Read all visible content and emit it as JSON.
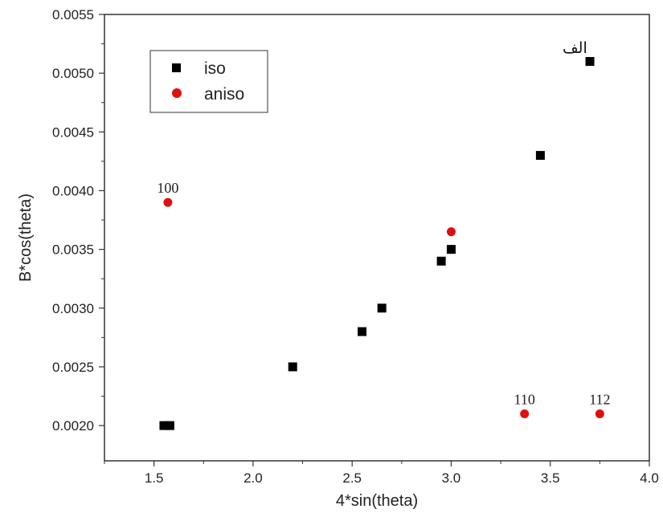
{
  "chart_data": {
    "type": "scatter",
    "xlabel": "4*sin(theta)",
    "ylabel": "B*cos(theta)",
    "xlim": [
      1.25,
      4.0
    ],
    "ylim": [
      0.0017,
      0.0055
    ],
    "x_ticks": [
      "1.5",
      "2.0",
      "2.5",
      "3.0",
      "3.5",
      "4.0"
    ],
    "y_ticks": [
      "0.0020",
      "0.0025",
      "0.0030",
      "0.0035",
      "0.0040",
      "0.0045",
      "0.0050",
      "0.0055"
    ],
    "x_tick_values": [
      1.5,
      2.0,
      2.5,
      3.0,
      3.5,
      4.0
    ],
    "y_tick_values": [
      0.002,
      0.0025,
      0.003,
      0.0035,
      0.004,
      0.0045,
      0.005,
      0.0055
    ],
    "grid": false,
    "legend_position": "top-left",
    "series": [
      {
        "name": "iso",
        "marker": "square",
        "color": "#000000",
        "points": [
          {
            "x": 1.55,
            "y": 0.002
          },
          {
            "x": 1.58,
            "y": 0.002
          },
          {
            "x": 2.2,
            "y": 0.0025
          },
          {
            "x": 2.55,
            "y": 0.0028
          },
          {
            "x": 2.65,
            "y": 0.003
          },
          {
            "x": 2.95,
            "y": 0.0034
          },
          {
            "x": 3.0,
            "y": 0.0035
          },
          {
            "x": 3.45,
            "y": 0.0043
          },
          {
            "x": 3.7,
            "y": 0.0051
          }
        ]
      },
      {
        "name": "aniso",
        "marker": "circle",
        "color": "#e01010",
        "points": [
          {
            "x": 1.57,
            "y": 0.0039
          },
          {
            "x": 3.0,
            "y": 0.00365
          },
          {
            "x": 3.37,
            "y": 0.0021
          },
          {
            "x": 3.75,
            "y": 0.0021
          }
        ]
      }
    ],
    "annotations": [
      {
        "text": "100",
        "x": 1.57,
        "y": 0.0039
      },
      {
        "text": "110",
        "x": 3.37,
        "y": 0.0021
      },
      {
        "text": "112",
        "x": 3.75,
        "y": 0.0021
      }
    ],
    "corner_label": "الف"
  }
}
